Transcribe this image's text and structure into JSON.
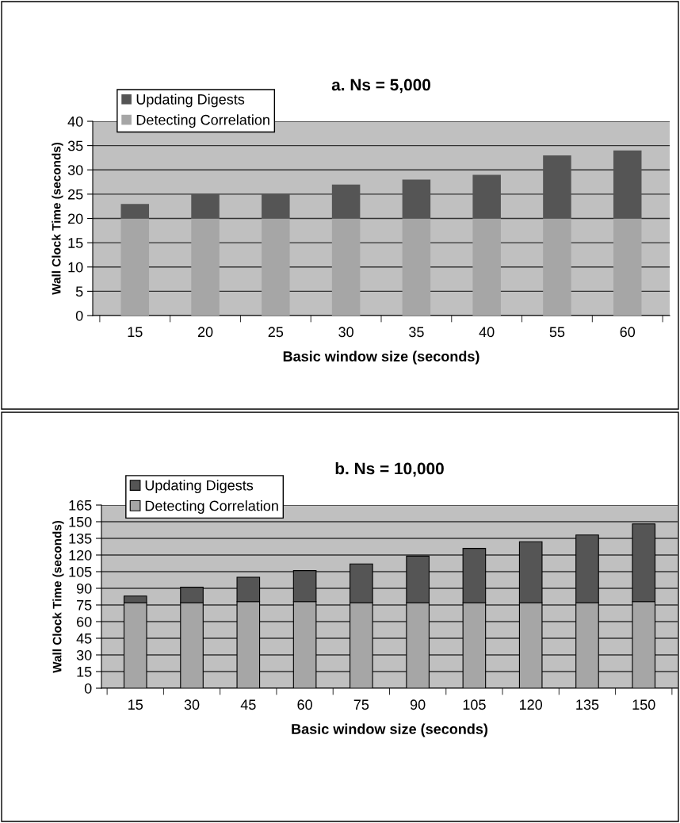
{
  "chart_data": [
    {
      "type": "bar",
      "title": "a. Ns = 5,000",
      "xlabel": "Basic window size (seconds)",
      "ylabel": "Wall Clock Time (seconds)",
      "categories": [
        "15",
        "20",
        "25",
        "30",
        "35",
        "40",
        "55",
        "60"
      ],
      "stacked": true,
      "series": [
        {
          "name": "Detecting Correlation",
          "color": "#a6a6a6",
          "values": [
            20,
            20,
            20,
            20,
            20,
            20,
            20,
            20
          ]
        },
        {
          "name": "Updating Digests",
          "color": "#555555",
          "values": [
            3,
            5,
            5,
            7,
            8,
            9,
            13,
            14
          ]
        }
      ],
      "ylim": [
        0,
        40
      ],
      "yticks": [
        0,
        5,
        10,
        15,
        20,
        25,
        30,
        35,
        40
      ],
      "grid": "y",
      "legend": "top left"
    },
    {
      "type": "bar",
      "title": "b. Ns = 10,000",
      "xlabel": "Basic window size (seconds)",
      "ylabel": "Wall Clock Time (seconds)",
      "categories": [
        "15",
        "30",
        "45",
        "60",
        "75",
        "90",
        "105",
        "120",
        "135",
        "150"
      ],
      "stacked": true,
      "series": [
        {
          "name": "Detecting Correlation",
          "color": "#a6a6a6",
          "values": [
            77,
            77,
            78,
            78,
            77,
            77,
            77,
            77,
            77,
            78
          ]
        },
        {
          "name": "Updating Digests",
          "color": "#555555",
          "values": [
            6,
            14,
            22,
            28,
            35,
            42,
            49,
            55,
            61,
            70
          ]
        }
      ],
      "ylim": [
        0,
        165
      ],
      "yticks": [
        0,
        15,
        30,
        45,
        60,
        75,
        90,
        105,
        120,
        135,
        150,
        165
      ],
      "grid": "y",
      "legend": "top left"
    }
  ]
}
